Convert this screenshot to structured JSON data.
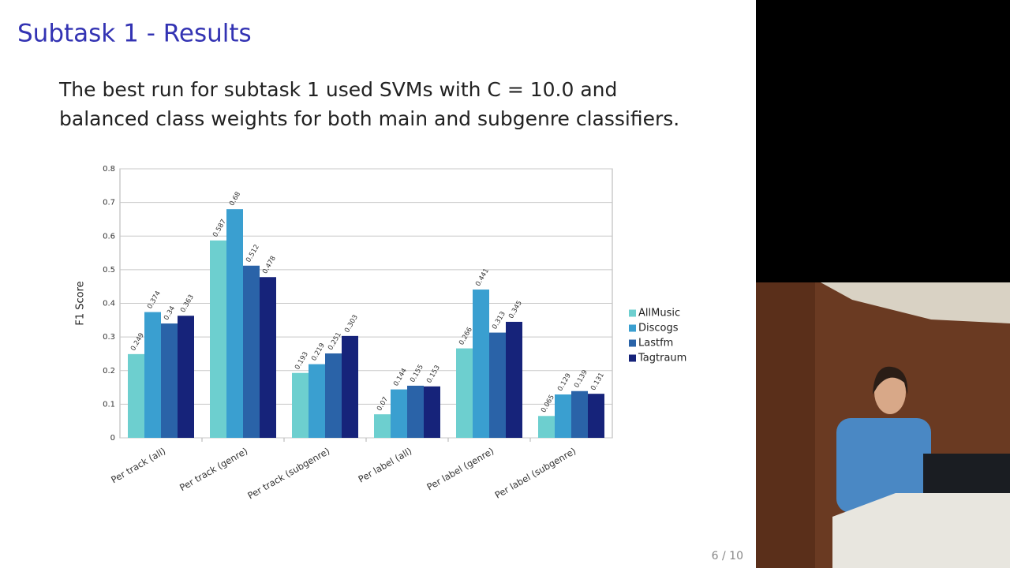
{
  "slide": {
    "title": "Subtask 1 - Results",
    "body": [
      "The best run for subtask 1 used SVMs with C = 10.0 and",
      "balanced class weights for both main and subgenre classifiers."
    ],
    "page": "6 / 10"
  },
  "chart_data": {
    "type": "bar",
    "ylabel": "F1 Score",
    "categories": [
      "Per track (all)",
      "Per track (genre)",
      "Per track (subgenre)",
      "Per label (all)",
      "Per label (genre)",
      "Per label (subgenre)"
    ],
    "series": [
      {
        "name": "AllMusic",
        "color": "#6dcfcf",
        "values": [
          0.249,
          0.587,
          0.193,
          0.07,
          0.266,
          0.065
        ]
      },
      {
        "name": "Discogs",
        "color": "#3a9fd0",
        "values": [
          0.374,
          0.68,
          0.219,
          0.144,
          0.441,
          0.129
        ]
      },
      {
        "name": "Lastfm",
        "color": "#2a63a8",
        "values": [
          0.34,
          0.512,
          0.251,
          0.155,
          0.313,
          0.139
        ]
      },
      {
        "name": "Tagtraum",
        "color": "#16237a",
        "values": [
          0.363,
          0.478,
          0.303,
          0.153,
          0.345,
          0.131
        ]
      }
    ],
    "ylim": [
      0,
      0.8
    ],
    "yticks": [
      0,
      0.1,
      0.2,
      0.3,
      0.4,
      0.5,
      0.6,
      0.7,
      0.8
    ],
    "grid": true,
    "legend": "right"
  }
}
